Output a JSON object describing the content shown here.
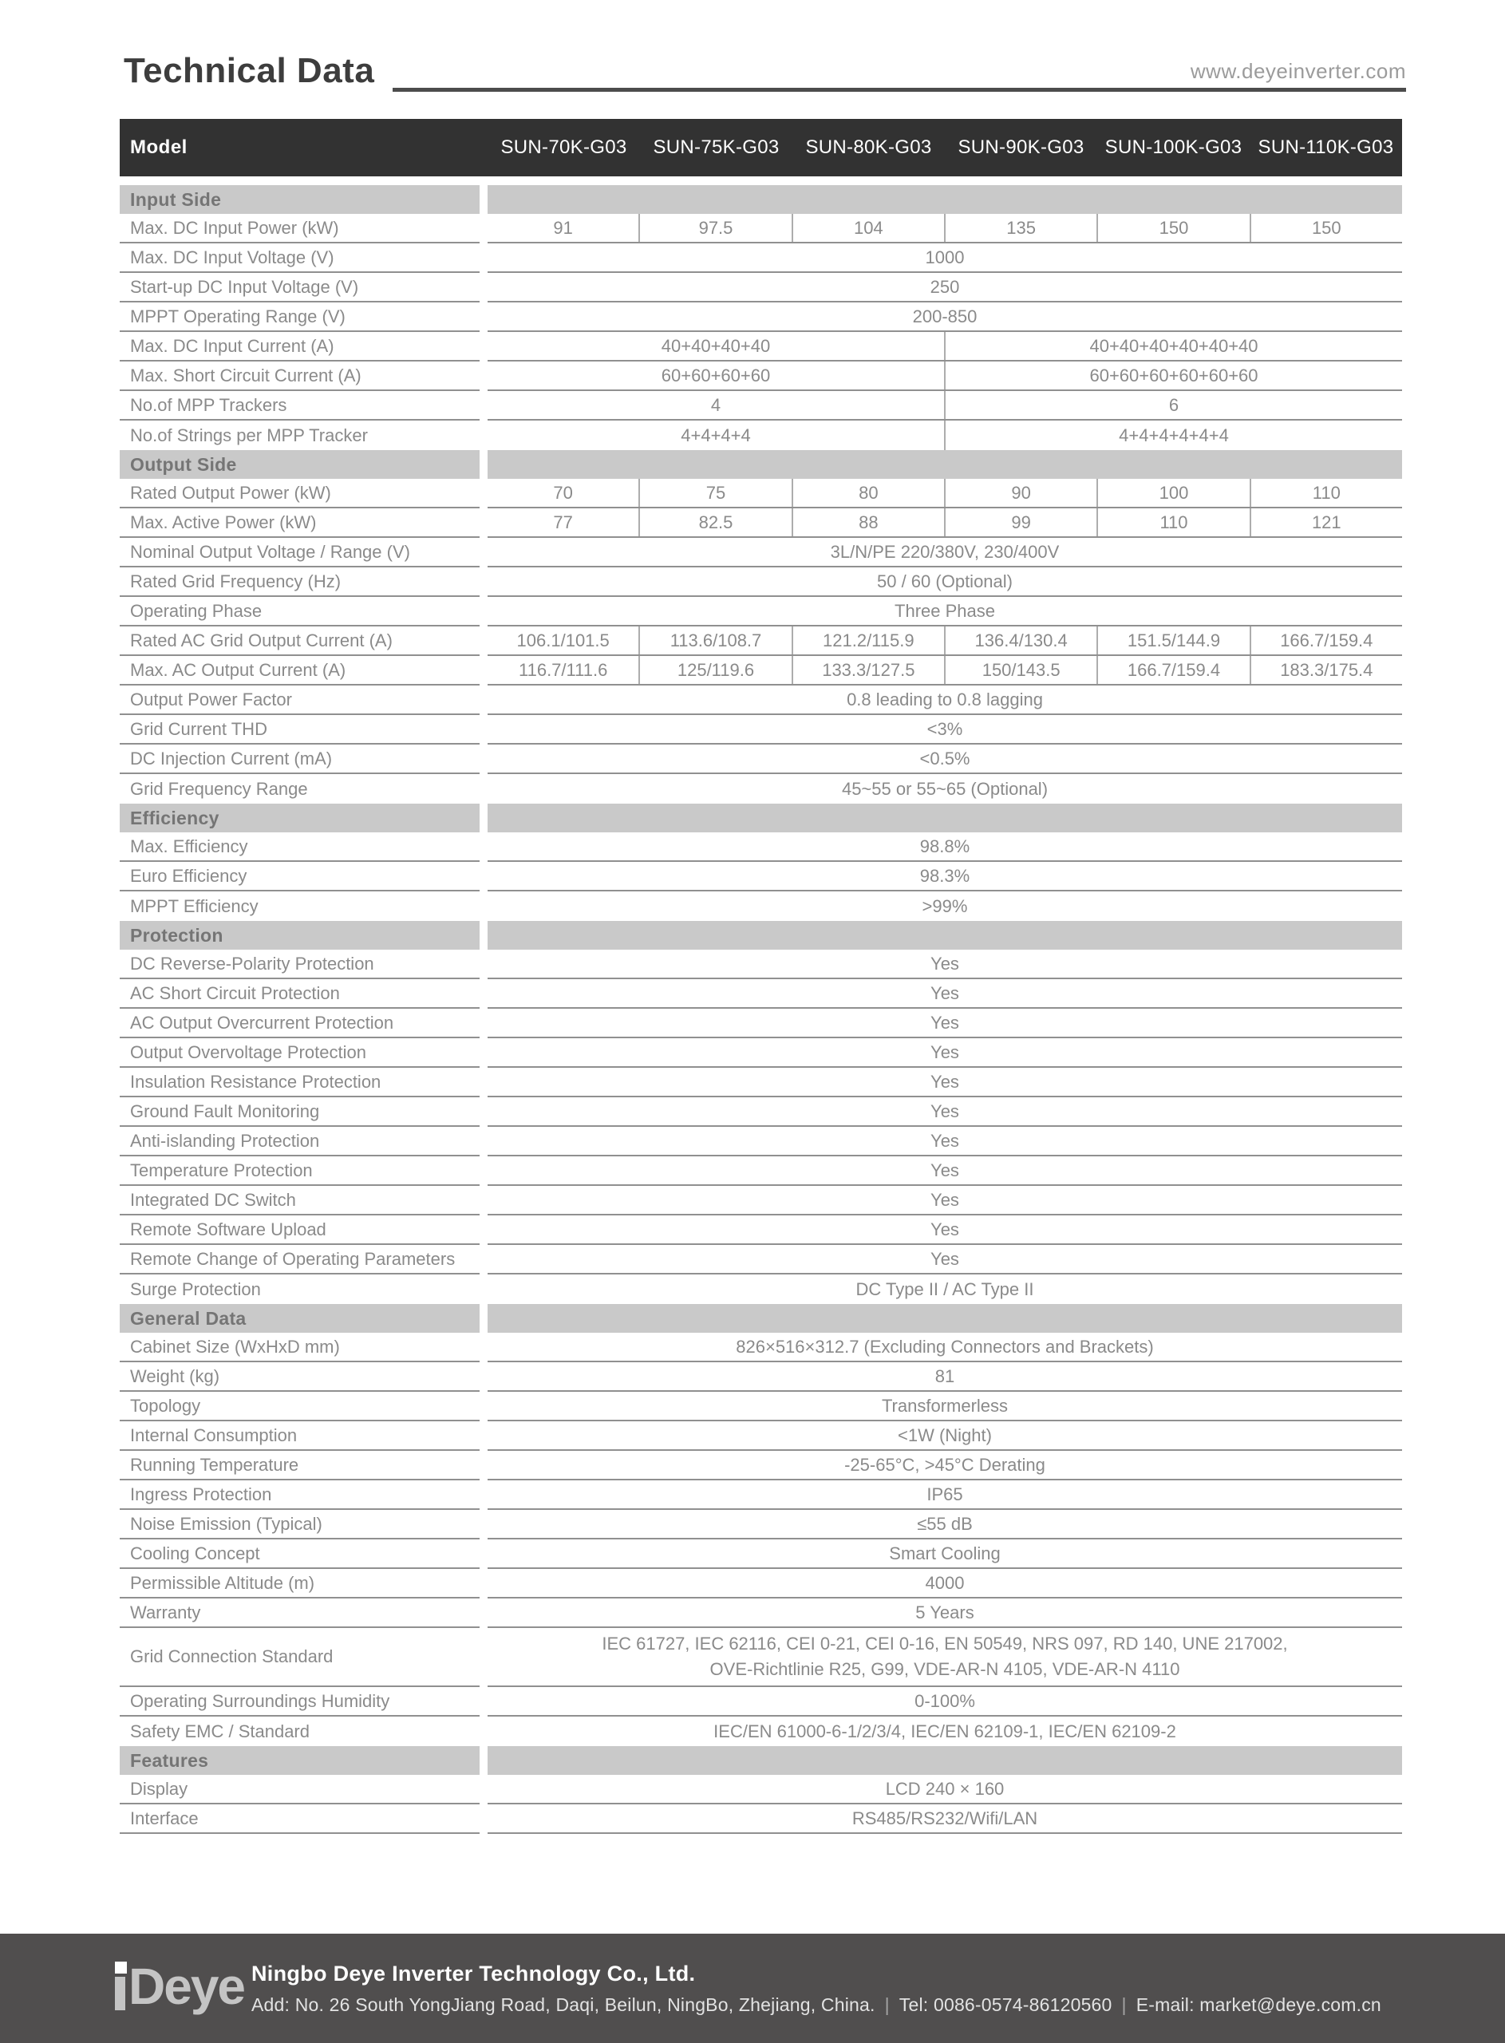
{
  "page": {
    "title": "Technical Data",
    "website": "www.deyeinverter.com"
  },
  "table": {
    "header": {
      "label": "Model",
      "models": [
        "SUN-70K-G03",
        "SUN-75K-G03",
        "SUN-80K-G03",
        "SUN-90K-G03",
        "SUN-100K-G03",
        "SUN-110K-G03"
      ]
    },
    "sections": [
      {
        "title": "Input Side",
        "rows": [
          {
            "label": "Max. DC Input Power (kW)",
            "type": "per-column",
            "values": [
              "91",
              "97.5",
              "104",
              "135",
              "150",
              "150"
            ]
          },
          {
            "label": "Max. DC Input Voltage (V)",
            "type": "full",
            "value": "1000"
          },
          {
            "label": "Start-up DC Input Voltage (V)",
            "type": "full",
            "value": "250"
          },
          {
            "label": "MPPT  Operating Range (V)",
            "type": "full",
            "value": "200-850"
          },
          {
            "label": "Max. DC Input Current (A)",
            "type": "split",
            "values": [
              "40+40+40+40",
              "40+40+40+40+40+40"
            ]
          },
          {
            "label": "Max. Short Circuit Current (A)",
            "type": "split",
            "values": [
              "60+60+60+60",
              "60+60+60+60+60+60"
            ]
          },
          {
            "label": "No.of MPP Trackers",
            "type": "split",
            "values": [
              "4",
              "6"
            ]
          },
          {
            "label": "No.of Strings per MPP Tracker",
            "type": "split",
            "values": [
              "4+4+4+4",
              "4+4+4+4+4+4"
            ]
          }
        ]
      },
      {
        "title": "Output Side",
        "rows": [
          {
            "label": "Rated Output Power (kW)",
            "type": "per-column",
            "values": [
              "70",
              "75",
              "80",
              "90",
              "100",
              "110"
            ]
          },
          {
            "label": "Max. Active Power (kW)",
            "type": "per-column",
            "values": [
              "77",
              "82.5",
              "88",
              "99",
              "110",
              "121"
            ]
          },
          {
            "label": "Nominal Output Voltage / Range (V)",
            "type": "full",
            "value": "3L/N/PE 220/380V, 230/400V"
          },
          {
            "label": "Rated Grid Frequency (Hz)",
            "type": "full",
            "value": "50 / 60 (Optional)"
          },
          {
            "label": "Operating Phase",
            "type": "full",
            "value": "Three Phase"
          },
          {
            "label": "Rated AC Grid Output Current (A)",
            "type": "per-column",
            "values": [
              "106.1/101.5",
              "113.6/108.7",
              "121.2/115.9",
              "136.4/130.4",
              "151.5/144.9",
              "166.7/159.4"
            ]
          },
          {
            "label": "Max. AC Output Current (A)",
            "type": "per-column",
            "values": [
              "116.7/111.6",
              "125/119.6",
              "133.3/127.5",
              "150/143.5",
              "166.7/159.4",
              "183.3/175.4"
            ]
          },
          {
            "label": "Output Power Factor",
            "type": "full",
            "value": "0.8 leading to 0.8 lagging"
          },
          {
            "label": "Grid Current THD",
            "type": "full",
            "value": "<3%"
          },
          {
            "label": "DC Injection Current (mA)",
            "type": "full",
            "value": "<0.5%"
          },
          {
            "label": "Grid Frequency Range",
            "type": "full",
            "value": "45~55 or 55~65 (Optional)"
          }
        ]
      },
      {
        "title": "Efficiency",
        "rows": [
          {
            "label": "Max. Efficiency",
            "type": "full",
            "value": "98.8%"
          },
          {
            "label": "Euro Efficiency",
            "type": "full",
            "value": "98.3%"
          },
          {
            "label": "MPPT Efficiency",
            "type": "full",
            "value": ">99%"
          }
        ]
      },
      {
        "title": "Protection",
        "rows": [
          {
            "label": "DC Reverse-Polarity Protection",
            "type": "full",
            "value": "Yes"
          },
          {
            "label": "AC Short Circuit Protection",
            "type": "full",
            "value": "Yes"
          },
          {
            "label": "AC Output Overcurrent Protection",
            "type": "full",
            "value": "Yes"
          },
          {
            "label": "Output Overvoltage Protection",
            "type": "full",
            "value": "Yes"
          },
          {
            "label": "Insulation Resistance Protection",
            "type": "full",
            "value": "Yes"
          },
          {
            "label": "Ground Fault Monitoring",
            "type": "full",
            "value": "Yes"
          },
          {
            "label": "Anti-islanding Protection",
            "type": "full",
            "value": "Yes"
          },
          {
            "label": "Temperature Protection",
            "type": "full",
            "value": "Yes"
          },
          {
            "label": "Integrated DC Switch",
            "type": "full",
            "value": "Yes"
          },
          {
            "label": "Remote Software Upload",
            "type": "full",
            "value": "Yes"
          },
          {
            "label": "Remote Change of Operating Parameters",
            "type": "full",
            "value": "Yes"
          },
          {
            "label": "Surge Protection",
            "type": "full",
            "value": "DC Type II / AC Type II"
          }
        ]
      },
      {
        "title": "General Data",
        "rows": [
          {
            "label": "Cabinet Size (WxHxD mm)",
            "type": "full",
            "value": "826×516×312.7 (Excluding Connectors and Brackets)"
          },
          {
            "label": "Weight (kg)",
            "type": "full",
            "value": "81"
          },
          {
            "label": "Topology",
            "type": "full",
            "value": "Transformerless"
          },
          {
            "label": "Internal Consumption",
            "type": "full",
            "value": "<1W (Night)"
          },
          {
            "label": "Running Temperature",
            "type": "full",
            "value": "-25-65°C, >45°C Derating"
          },
          {
            "label": "Ingress Protection",
            "type": "full",
            "value": "IP65"
          },
          {
            "label": "Noise Emission (Typical)",
            "type": "full",
            "value": "≤55 dB"
          },
          {
            "label": "Cooling Concept",
            "type": "full",
            "value": "Smart Cooling"
          },
          {
            "label": "Permissible Altitude (m)",
            "type": "full",
            "value": "4000"
          },
          {
            "label": "Warranty",
            "type": "full",
            "value": "5 Years"
          },
          {
            "label": "Grid Connection Standard",
            "type": "full",
            "tall": true,
            "value": "IEC 61727, IEC 62116, CEI 0-21, CEI 0-16, EN 50549, NRS 097, RD 140, UNE 217002,\nOVE-Richtlinie R25, G99, VDE-AR-N 4105, VDE-AR-N 4110"
          },
          {
            "label": "Operating Surroundings Humidity",
            "type": "full",
            "value": "0-100%"
          },
          {
            "label": "Safety EMC / Standard",
            "type": "full",
            "value": "IEC/EN 61000-6-1/2/3/4, IEC/EN 62109-1, IEC/EN 62109-2"
          }
        ]
      },
      {
        "title": "Features",
        "rows": [
          {
            "label": "Display",
            "type": "full",
            "value": "LCD 240 × 160"
          },
          {
            "label": "Interface",
            "type": "full",
            "value": "RS485/RS232/Wifi/LAN"
          }
        ]
      }
    ]
  },
  "footer": {
    "logo_text": "Deye",
    "company": "Ningbo Deye Inverter Technology Co., Ltd.",
    "address": "Add: No. 26 South YongJiang Road, Daqi, Beilun, NingBo, Zhejiang, China.",
    "tel": "Tel: 0086-0574-86120560",
    "email": "E-mail: market@deye.com.cn",
    "separator": "|"
  }
}
